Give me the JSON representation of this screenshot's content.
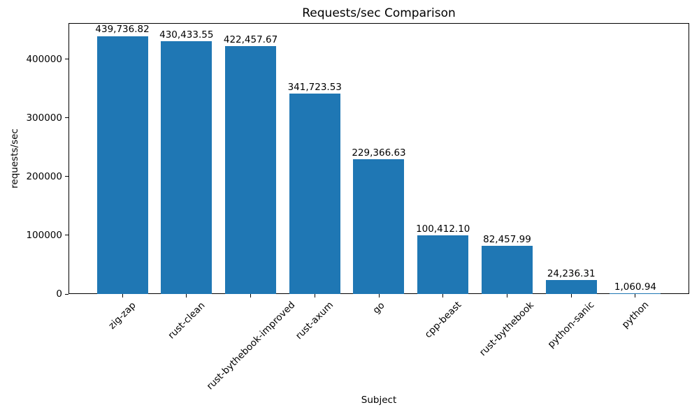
{
  "chart_data": {
    "type": "bar",
    "title": "Requests/sec Comparison",
    "xlabel": "Subject",
    "ylabel": "requests/sec",
    "categories": [
      "zig-zap",
      "rust-clean",
      "rust-bythebook-improved",
      "rust-axum",
      "go",
      "cpp-beast",
      "rust-bythebook",
      "python-sanic",
      "python"
    ],
    "values": [
      439736.82,
      430433.55,
      422457.67,
      341723.53,
      229366.63,
      100412.1,
      82457.99,
      24236.31,
      1060.94
    ],
    "bar_value_labels": [
      "439,736.82",
      "430,433.55",
      "422,457.67",
      "341,723.53",
      "229,366.63",
      "100,412.10",
      "82,457.99",
      "24,236.31",
      "1,060.94"
    ],
    "yticks": [
      0,
      100000,
      200000,
      300000,
      400000
    ],
    "ytick_labels": [
      "0",
      "100000",
      "200000",
      "300000",
      "400000"
    ],
    "ylim": [
      0,
      461724
    ],
    "x_tick_rotation_deg": 45,
    "grid": false,
    "legend": "none",
    "bar_color": "#1f77b4",
    "text_color": "#000000"
  }
}
